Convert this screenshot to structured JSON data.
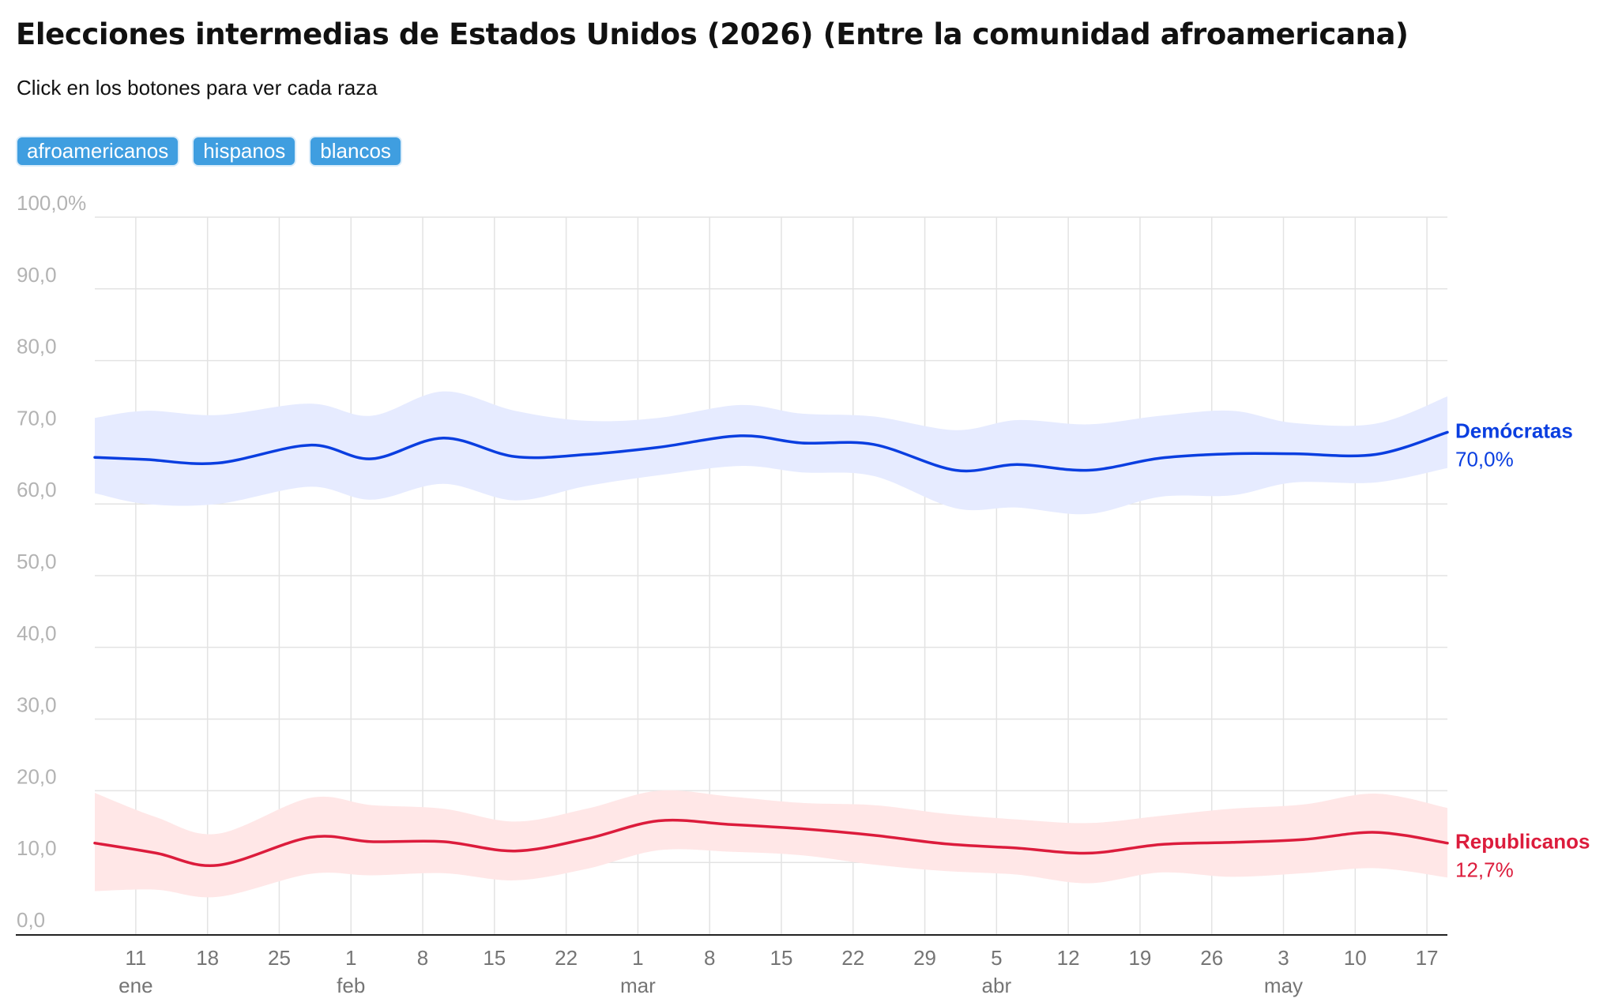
{
  "title": "Elecciones intermedias de Estados Unidos (2026) (Entre la comunidad afroamericana)",
  "subtitle": "Click en los botones para ver cada raza",
  "buttons": [
    {
      "label": "afroamericanos"
    },
    {
      "label": "hispanos"
    },
    {
      "label": "blancos"
    }
  ],
  "colors": {
    "dem": "#0a3ee0",
    "dem_band": "#e6ebff",
    "rep": "#dc1c3c",
    "rep_band": "#ffe7e7",
    "button": "#3f9ee0",
    "grid": "#e3e3e3",
    "ytick": "#b3b3b3",
    "xtick": "#757575"
  },
  "chart_data": {
    "type": "line",
    "x_start": "2026-01-07",
    "x_end": "2026-05-19",
    "ylim": [
      0,
      100
    ],
    "yticks": [
      {
        "value": 0,
        "label": "0,0"
      },
      {
        "value": 10,
        "label": "10,0"
      },
      {
        "value": 20,
        "label": "20,0"
      },
      {
        "value": 30,
        "label": "30,0"
      },
      {
        "value": 40,
        "label": "40,0"
      },
      {
        "value": 50,
        "label": "50,0"
      },
      {
        "value": 60,
        "label": "60,0"
      },
      {
        "value": 70,
        "label": "70,0"
      },
      {
        "value": 80,
        "label": "80,0"
      },
      {
        "value": 90,
        "label": "90,0"
      },
      {
        "value": 100,
        "label": "100,0%"
      }
    ],
    "xticks": [
      {
        "date": "2026-01-11",
        "label": "11",
        "month": "ene"
      },
      {
        "date": "2026-01-18",
        "label": "18"
      },
      {
        "date": "2026-01-25",
        "label": "25"
      },
      {
        "date": "2026-02-01",
        "label": "1",
        "month": "feb"
      },
      {
        "date": "2026-02-08",
        "label": "8"
      },
      {
        "date": "2026-02-15",
        "label": "15"
      },
      {
        "date": "2026-02-22",
        "label": "22"
      },
      {
        "date": "2026-03-01",
        "label": "1",
        "month": "mar"
      },
      {
        "date": "2026-03-08",
        "label": "8"
      },
      {
        "date": "2026-03-15",
        "label": "15"
      },
      {
        "date": "2026-03-22",
        "label": "22"
      },
      {
        "date": "2026-03-29",
        "label": "29"
      },
      {
        "date": "2026-04-05",
        "label": "5",
        "month": "abr"
      },
      {
        "date": "2026-04-12",
        "label": "12"
      },
      {
        "date": "2026-04-19",
        "label": "19"
      },
      {
        "date": "2026-04-26",
        "label": "26"
      },
      {
        "date": "2026-05-03",
        "label": "3",
        "month": "may"
      },
      {
        "date": "2026-05-10",
        "label": "10"
      },
      {
        "date": "2026-05-17",
        "label": "17"
      }
    ],
    "series": [
      {
        "name": "Demócratas",
        "end_label": "70,0%",
        "color": "#0a3ee0",
        "band_color": "#e6ebff",
        "points": [
          {
            "date": "2026-01-07",
            "value": 66.5,
            "low": 61.5,
            "high": 72.0
          },
          {
            "date": "2026-01-12",
            "value": 66.2,
            "low": 60.0,
            "high": 73.0
          },
          {
            "date": "2026-01-19",
            "value": 65.7,
            "low": 60.0,
            "high": 72.4
          },
          {
            "date": "2026-01-28",
            "value": 68.2,
            "low": 62.4,
            "high": 74.0
          },
          {
            "date": "2026-02-03",
            "value": 66.3,
            "low": 60.6,
            "high": 72.3
          },
          {
            "date": "2026-02-10",
            "value": 69.2,
            "low": 62.8,
            "high": 75.7
          },
          {
            "date": "2026-02-17",
            "value": 66.6,
            "low": 60.5,
            "high": 73.0
          },
          {
            "date": "2026-02-24",
            "value": 66.9,
            "low": 62.5,
            "high": 71.6
          },
          {
            "date": "2026-03-03",
            "value": 67.9,
            "low": 64.0,
            "high": 72.0
          },
          {
            "date": "2026-03-11",
            "value": 69.5,
            "low": 65.3,
            "high": 73.8
          },
          {
            "date": "2026-03-17",
            "value": 68.5,
            "low": 64.4,
            "high": 72.6
          },
          {
            "date": "2026-03-24",
            "value": 68.3,
            "low": 63.9,
            "high": 72.2
          },
          {
            "date": "2026-04-01",
            "value": 64.7,
            "low": 59.4,
            "high": 70.3
          },
          {
            "date": "2026-04-07",
            "value": 65.5,
            "low": 59.5,
            "high": 71.7
          },
          {
            "date": "2026-04-14",
            "value": 64.7,
            "low": 58.6,
            "high": 71.1
          },
          {
            "date": "2026-04-21",
            "value": 66.4,
            "low": 61.0,
            "high": 72.3
          },
          {
            "date": "2026-04-28",
            "value": 67.0,
            "low": 61.2,
            "high": 73.0
          },
          {
            "date": "2026-05-04",
            "value": 67.0,
            "low": 63.0,
            "high": 71.3
          },
          {
            "date": "2026-05-12",
            "value": 66.9,
            "low": 63.0,
            "high": 71.2
          },
          {
            "date": "2026-05-19",
            "value": 70.0,
            "low": 65.0,
            "high": 75.0
          }
        ]
      },
      {
        "name": "Republicanos",
        "end_label": "12,7%",
        "color": "#dc1c3c",
        "band_color": "#ffe7e7",
        "points": [
          {
            "date": "2026-01-07",
            "value": 12.7,
            "low": 6.0,
            "high": 19.7
          },
          {
            "date": "2026-01-13",
            "value": 11.3,
            "low": 6.2,
            "high": 16.3
          },
          {
            "date": "2026-01-19",
            "value": 9.6,
            "low": 5.2,
            "high": 14.0
          },
          {
            "date": "2026-01-28",
            "value": 13.5,
            "low": 8.4,
            "high": 19.0
          },
          {
            "date": "2026-02-03",
            "value": 12.9,
            "low": 8.2,
            "high": 18.0
          },
          {
            "date": "2026-02-10",
            "value": 12.9,
            "low": 8.5,
            "high": 17.5
          },
          {
            "date": "2026-02-17",
            "value": 11.6,
            "low": 7.5,
            "high": 15.7
          },
          {
            "date": "2026-02-24",
            "value": 13.3,
            "low": 9.1,
            "high": 17.5
          },
          {
            "date": "2026-03-03",
            "value": 15.8,
            "low": 11.7,
            "high": 20.0
          },
          {
            "date": "2026-03-10",
            "value": 15.3,
            "low": 11.5,
            "high": 19.2
          },
          {
            "date": "2026-03-17",
            "value": 14.7,
            "low": 11.0,
            "high": 18.3
          },
          {
            "date": "2026-03-24",
            "value": 13.8,
            "low": 9.7,
            "high": 18.0
          },
          {
            "date": "2026-03-31",
            "value": 12.6,
            "low": 8.8,
            "high": 16.8
          },
          {
            "date": "2026-04-07",
            "value": 12.0,
            "low": 8.3,
            "high": 16.0
          },
          {
            "date": "2026-04-14",
            "value": 11.3,
            "low": 7.1,
            "high": 15.5
          },
          {
            "date": "2026-04-21",
            "value": 12.5,
            "low": 8.6,
            "high": 16.5
          },
          {
            "date": "2026-04-28",
            "value": 12.8,
            "low": 8.0,
            "high": 17.5
          },
          {
            "date": "2026-05-05",
            "value": 13.2,
            "low": 8.5,
            "high": 18.1
          },
          {
            "date": "2026-05-12",
            "value": 14.2,
            "low": 9.2,
            "high": 19.6
          },
          {
            "date": "2026-05-19",
            "value": 12.7,
            "low": 7.9,
            "high": 17.6
          }
        ]
      }
    ]
  }
}
